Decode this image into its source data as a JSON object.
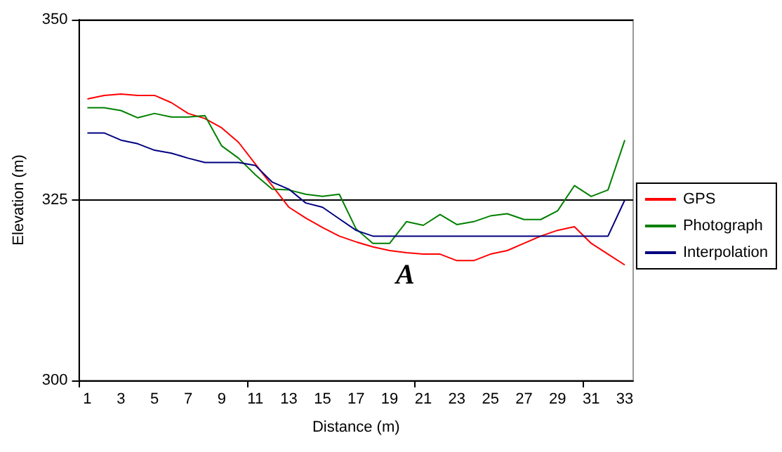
{
  "chart_data": {
    "type": "line",
    "xlabel": "Distance (m)",
    "ylabel": "Elevation (m)",
    "x": [
      1,
      2,
      3,
      4,
      5,
      6,
      7,
      8,
      9,
      10,
      11,
      12,
      13,
      14,
      15,
      16,
      17,
      18,
      19,
      20,
      21,
      22,
      23,
      24,
      25,
      26,
      27,
      28,
      29,
      30,
      31,
      32,
      33
    ],
    "xlim": [
      0.5,
      33.5
    ],
    "xticks": [
      {
        "value": 0.5,
        "label": null
      },
      1,
      3,
      5,
      7,
      9,
      {
        "value": 10.5,
        "label": null
      },
      11,
      13,
      15,
      17,
      19,
      {
        "value": 20.5,
        "label": null
      },
      21,
      23,
      25,
      27,
      29,
      {
        "value": 30.5,
        "label": null
      },
      31,
      33
    ],
    "series": [
      {
        "name": "GPS",
        "color": "#ff0000",
        "values": [
          339,
          339.5,
          339.7,
          339.5,
          339.5,
          338.5,
          337,
          336.3,
          335,
          333,
          330,
          327,
          324,
          322.5,
          321.2,
          320,
          319.2,
          318.5,
          318,
          317.7,
          317.5,
          317.5,
          316.6,
          316.6,
          317.5,
          318,
          319,
          320,
          320.8,
          321.3,
          319,
          317.5,
          316
        ]
      },
      {
        "name": "Photograph",
        "color": "#008000",
        "values": [
          337.8,
          337.8,
          337.4,
          336.4,
          337,
          336.5,
          336.5,
          336.7,
          332.5,
          330.8,
          328.5,
          326.5,
          326.4,
          325.8,
          325.5,
          325.8,
          321,
          319,
          319,
          322,
          321.5,
          323,
          321.6,
          322,
          322.8,
          323.1,
          322.3,
          322.3,
          323.5,
          327,
          325.5,
          326.4,
          333.3
        ]
      },
      {
        "name": "Interpolation",
        "color": "#000080",
        "values": [
          334.3,
          334.3,
          333.3,
          332.8,
          331.9,
          331.5,
          330.8,
          330.2,
          330.2,
          330.2,
          329.8,
          327.5,
          326.5,
          324.6,
          324,
          322.4,
          320.8,
          320,
          320,
          320,
          320,
          320,
          320,
          320,
          320,
          320,
          320,
          320,
          320,
          320,
          320,
          320,
          325
        ]
      }
    ],
    "ylim": [
      300,
      350
    ],
    "yticks": [
      300,
      325,
      350
    ],
    "grid": "y",
    "legend": "right",
    "marker": "none",
    "line_style": "solid",
    "annotations": [
      "A"
    ]
  }
}
